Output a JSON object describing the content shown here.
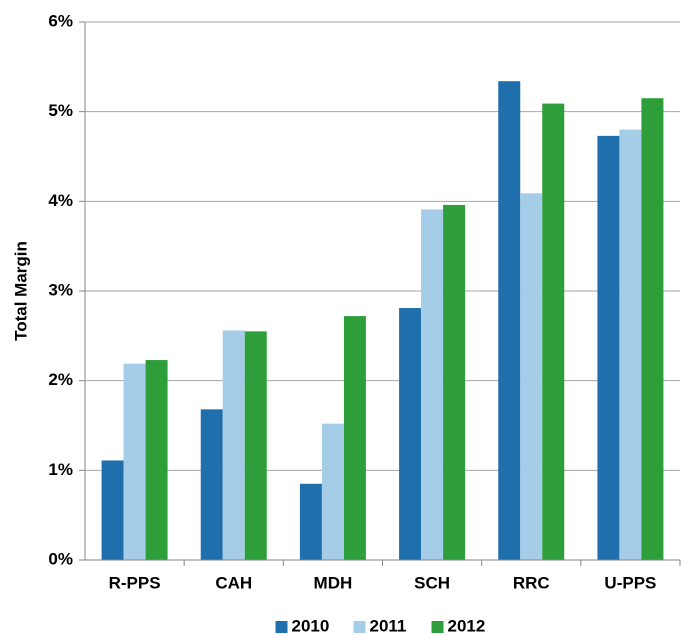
{
  "chart_data": {
    "type": "bar",
    "ylabel": "Total Margin",
    "categories": [
      "R-PPS",
      "CAH",
      "MDH",
      "SCH",
      "RRC",
      "U-PPS"
    ],
    "series": [
      {
        "name": "2010",
        "color": "#1f6fad",
        "values": [
          1.11,
          1.68,
          0.85,
          2.81,
          5.34,
          4.73
        ]
      },
      {
        "name": "2011",
        "color": "#a6cde8",
        "values": [
          2.19,
          2.56,
          1.52,
          3.91,
          4.09,
          4.8
        ]
      },
      {
        "name": "2012",
        "color": "#2e9e3a",
        "values": [
          2.23,
          2.55,
          2.72,
          3.96,
          5.09,
          5.15
        ]
      }
    ],
    "ylim": [
      0,
      6
    ],
    "yticks": [
      {
        "value": 0,
        "label": "0%"
      },
      {
        "value": 1,
        "label": "1%"
      },
      {
        "value": 2,
        "label": "2%"
      },
      {
        "value": 3,
        "label": "3%"
      },
      {
        "value": 4,
        "label": "4%"
      },
      {
        "value": 5,
        "label": "5%"
      },
      {
        "value": 6,
        "label": "6%"
      }
    ],
    "grid": true,
    "legend": "bottom"
  }
}
